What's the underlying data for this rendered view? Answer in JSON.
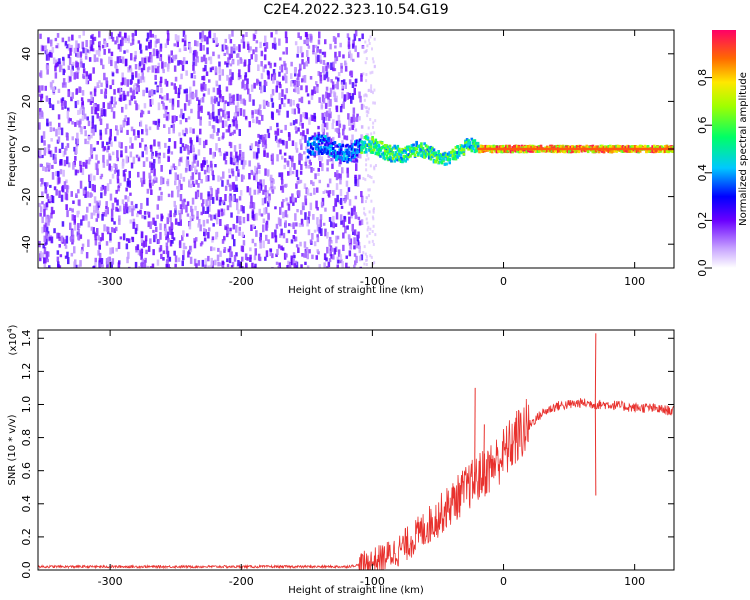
{
  "title": "C2E4.2022.323.10.54.G19",
  "chart_data": [
    {
      "type": "heatmap",
      "xlabel": "Height of straight line (km)",
      "ylabel": "Frequency (Hz)",
      "xlim": [
        -355,
        130
      ],
      "ylim": [
        -50,
        50
      ],
      "x_ticks": [
        -300,
        -200,
        -100,
        0,
        100
      ],
      "y_ticks": [
        -40,
        -20,
        0,
        20,
        40
      ],
      "colorbar": {
        "label": "Normalized spectral amplitude",
        "range": [
          0.0,
          1.0
        ],
        "ticks": [
          "0.0",
          "0.2",
          "0.4",
          "0.6",
          "0.8"
        ]
      },
      "description_regions": [
        {
          "x_range": [
            -355,
            -105
          ],
          "pattern": "scattered noise, 0.1-0.4"
        },
        {
          "x_range": [
            -105,
            130
          ],
          "center_freq": 0,
          "amplitude": "0.4-1.0"
        }
      ]
    },
    {
      "type": "line",
      "xlabel": "Height of straight line (km)",
      "ylabel": "SNR (10 * v/v)",
      "y_multiplier": "(x10",
      "y_multiplier_exp": "4",
      "y_multiplier_close": ")",
      "xlim": [
        -355,
        130
      ],
      "ylim": [
        0.0,
        1.45
      ],
      "x_ticks": [
        -300,
        -200,
        -100,
        0,
        100
      ],
      "y_ticks": [
        "0.0",
        "0.2",
        "0.4",
        "0.6",
        "0.8",
        "1.0",
        "1.2",
        "1.4"
      ],
      "series": [
        {
          "color": "#e8312d",
          "x": [
            -355,
            -300,
            -250,
            -200,
            -150,
            -120,
            -110,
            -100,
            -90,
            -80,
            -70,
            -60,
            -50,
            -40,
            -30,
            -20,
            -10,
            0,
            10,
            20,
            30,
            40,
            50,
            60,
            70,
            80,
            90,
            100,
            110,
            120,
            130
          ],
          "values": [
            0.02,
            0.02,
            0.02,
            0.02,
            0.02,
            0.02,
            0.03,
            0.05,
            0.08,
            0.12,
            0.18,
            0.25,
            0.32,
            0.4,
            0.48,
            0.55,
            0.62,
            0.7,
            0.8,
            0.88,
            0.95,
            0.99,
            1.0,
            1.01,
            1.0,
            1.0,
            0.99,
            0.98,
            0.98,
            0.97,
            0.96
          ]
        }
      ],
      "spikes": [
        {
          "x": 70,
          "values": [
            1.43,
            0.45
          ]
        },
        {
          "x": -22,
          "values": [
            1.1
          ]
        },
        {
          "x": -15,
          "values": [
            0.88
          ]
        }
      ]
    }
  ]
}
